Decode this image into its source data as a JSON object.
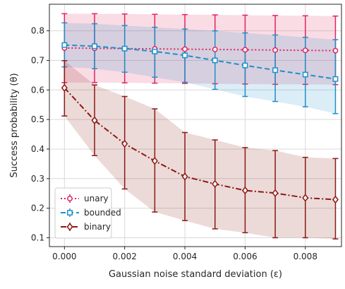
{
  "chart_data": {
    "type": "line",
    "xlabel": "Gaussian noise standard deviation (ε)",
    "ylabel": "Success probability (θ)",
    "xlim": [
      -0.0005,
      0.0092
    ],
    "ylim": [
      0.07,
      0.89
    ],
    "xticks": [
      0.0,
      0.002,
      0.004,
      0.006,
      0.008
    ],
    "xtick_labels": [
      "0.000",
      "0.002",
      "0.004",
      "0.006",
      "0.008"
    ],
    "yticks": [
      0.1,
      0.2,
      0.3,
      0.4,
      0.5,
      0.6,
      0.7,
      0.8
    ],
    "ytick_labels": [
      "0.1",
      "0.2",
      "0.3",
      "0.4",
      "0.5",
      "0.6",
      "0.7",
      "0.8"
    ],
    "grid": true,
    "legend_position": "bottom-left",
    "x": [
      0.0,
      0.001,
      0.002,
      0.003,
      0.004,
      0.005,
      0.006,
      0.007,
      0.008,
      0.009
    ],
    "series": [
      {
        "name": "unary",
        "color": "#e0245e",
        "linestyle": "dotted",
        "marker": "circle",
        "values": [
          0.742,
          0.741,
          0.74,
          0.739,
          0.738,
          0.737,
          0.736,
          0.735,
          0.734,
          0.733
        ],
        "lower": [
          0.625,
          0.625,
          0.624,
          0.623,
          0.622,
          0.621,
          0.62,
          0.619,
          0.619,
          0.618
        ],
        "upper": [
          0.858,
          0.858,
          0.857,
          0.856,
          0.855,
          0.854,
          0.853,
          0.852,
          0.851,
          0.85
        ]
      },
      {
        "name": "bounded",
        "color": "#1f8fc9",
        "linestyle": "dashed",
        "marker": "square",
        "values": [
          0.752,
          0.748,
          0.74,
          0.73,
          0.717,
          0.7,
          0.683,
          0.667,
          0.652,
          0.637
        ],
        "lower": [
          0.678,
          0.672,
          0.66,
          0.643,
          0.626,
          0.602,
          0.578,
          0.561,
          0.543,
          0.52
        ],
        "upper": [
          0.827,
          0.824,
          0.818,
          0.812,
          0.806,
          0.8,
          0.793,
          0.786,
          0.778,
          0.77
        ]
      },
      {
        "name": "binary",
        "color": "#8b1a12",
        "linestyle": "dashdot",
        "marker": "diamond",
        "values": [
          0.607,
          0.497,
          0.418,
          0.36,
          0.307,
          0.282,
          0.26,
          0.251,
          0.235,
          0.229
        ],
        "lower": [
          0.512,
          0.378,
          0.265,
          0.187,
          0.158,
          0.13,
          0.117,
          0.1,
          0.1,
          0.096
        ],
        "upper": [
          0.699,
          0.617,
          0.578,
          0.536,
          0.456,
          0.431,
          0.405,
          0.395,
          0.372,
          0.368
        ]
      }
    ]
  }
}
